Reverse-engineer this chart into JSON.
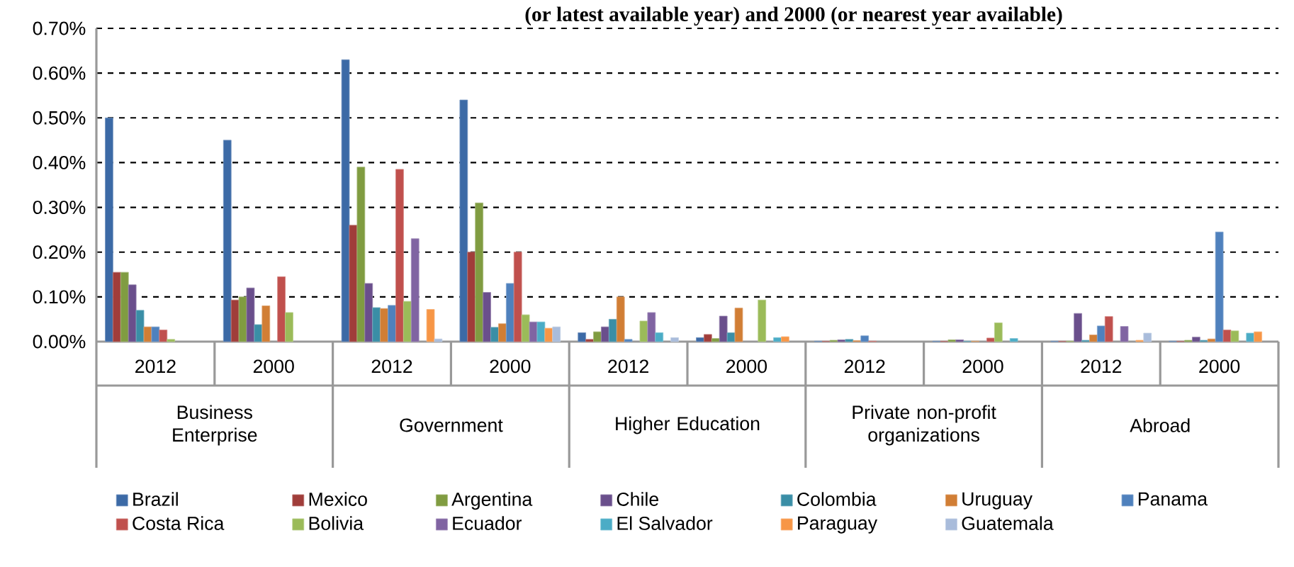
{
  "chart_data": {
    "type": "bar",
    "title": "(or latest available year) and 2000 (or nearest year available)",
    "categories": [
      "2012",
      "2000",
      "2012",
      "2000",
      "2012",
      "2000",
      "2012",
      "2000",
      "2012",
      "2000"
    ],
    "annotations": [
      "Business Enterprise",
      "Government",
      "Higher Education",
      "Private non-profit organizations",
      "Abroad"
    ],
    "series": [
      {
        "name": "Brazil",
        "color": "#3c6aa6",
        "values": [
          0.5,
          0.45,
          0.63,
          0.54,
          0.02,
          0.009,
          0.001,
          0.001,
          0.001,
          0.001
        ]
      },
      {
        "name": "Mexico",
        "color": "#a03d3a",
        "values": [
          0.155,
          0.093,
          0.26,
          0.2,
          0.005,
          0.016,
          0.001,
          0.001,
          0.001,
          0.001
        ]
      },
      {
        "name": "Argentina",
        "color": "#809c41",
        "values": [
          0.155,
          0.1,
          0.39,
          0.31,
          0.022,
          0.007,
          0.003,
          0.004,
          0.001,
          0.003
        ]
      },
      {
        "name": "Chile",
        "color": "#6a4f8c",
        "values": [
          0.127,
          0.12,
          0.13,
          0.11,
          0.033,
          0.057,
          0.004,
          0.004,
          0.063,
          0.01
        ]
      },
      {
        "name": "Colombia",
        "color": "#3a8ea6",
        "values": [
          0.07,
          0.038,
          0.076,
          0.032,
          0.05,
          0.02,
          0.005,
          0.001,
          0.003,
          0.003
        ]
      },
      {
        "name": "Uruguay",
        "color": "#d17e35",
        "values": [
          0.033,
          0.08,
          0.074,
          0.04,
          0.1,
          0.075,
          0.002,
          0.001,
          0.015,
          0.006
        ]
      },
      {
        "name": "Panama",
        "color": "#4f81bd",
        "values": [
          0.033,
          null,
          0.081,
          0.13,
          0.005,
          null,
          0.013,
          null,
          0.035,
          0.245
        ]
      },
      {
        "name": "Costa Rica",
        "color": "#c0504d",
        "values": [
          0.026,
          0.145,
          0.385,
          0.2,
          null,
          null,
          0.001,
          0.008,
          0.056,
          0.026
        ]
      },
      {
        "name": "Bolivia",
        "color": "#9bbb59",
        "values": [
          0.005,
          0.065,
          0.09,
          0.06,
          0.046,
          0.093,
          null,
          0.042,
          null,
          0.024
        ]
      },
      {
        "name": "Ecuador",
        "color": "#8064a2",
        "values": [
          null,
          null,
          0.23,
          0.044,
          0.065,
          null,
          null,
          null,
          0.034,
          null
        ]
      },
      {
        "name": "El Salvador",
        "color": "#4bacc6",
        "values": [
          null,
          null,
          null,
          0.044,
          0.02,
          0.009,
          null,
          0.007,
          null,
          0.019
        ]
      },
      {
        "name": "Paraguay",
        "color": "#f79646",
        "values": [
          null,
          null,
          0.072,
          0.03,
          null,
          0.011,
          null,
          null,
          0.003,
          0.022
        ]
      },
      {
        "name": "Guatemala",
        "color": "#a9bcdb",
        "values": [
          null,
          null,
          0.006,
          0.033,
          0.009,
          null,
          null,
          null,
          0.019,
          null
        ]
      }
    ],
    "ylim": [
      0,
      0.7
    ],
    "yticks": [
      {
        "value": 0,
        "label": "0.00%"
      },
      {
        "value": 0.1,
        "label": "0.10%"
      },
      {
        "value": 0.2,
        "label": "0.20%"
      },
      {
        "value": 0.3,
        "label": "0.30%"
      },
      {
        "value": 0.4,
        "label": "0.40%"
      },
      {
        "value": 0.5,
        "label": "0.50%"
      },
      {
        "value": 0.6,
        "label": "0.60%"
      },
      {
        "value": 0.7,
        "label": "0.70%"
      }
    ],
    "grid": "y",
    "line_style": "dashed",
    "legend": "bottom"
  }
}
